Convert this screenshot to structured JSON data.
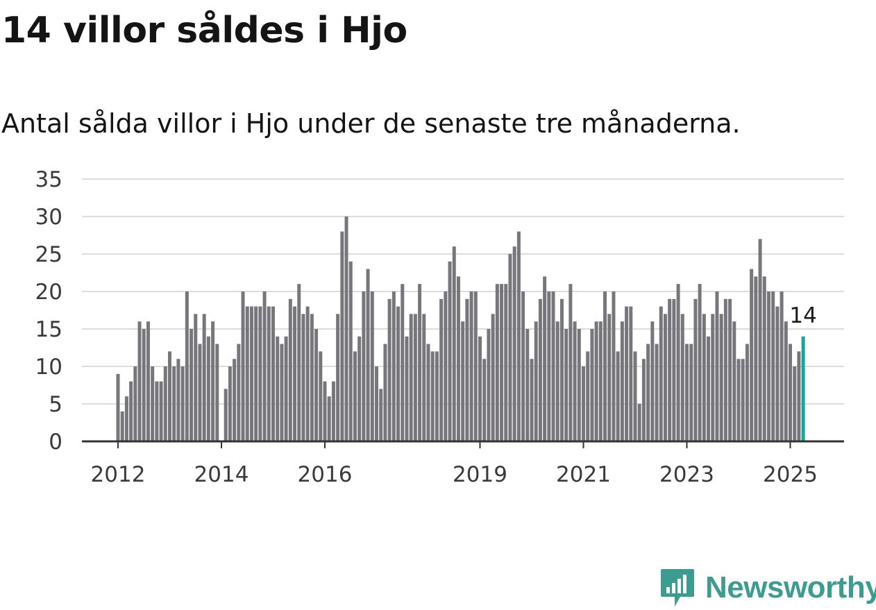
{
  "header": {
    "title": "14 villor såldes i Hjo",
    "subtitle": "Antal sålda villor i Hjo under de senaste tre månaderna."
  },
  "brand": {
    "name": "Newsworthy"
  },
  "colors": {
    "bar": "#76767b",
    "highlight": "#17a59a",
    "grid": "#dcdcdc",
    "axis": "#333333",
    "brand": "#3d9c90"
  },
  "chart_data": {
    "type": "bar",
    "title": "14 villor såldes i Hjo",
    "subtitle": "Antal sålda villor i Hjo under de senaste tre månaderna.",
    "xlabel": "",
    "ylabel": "",
    "ylim": [
      0,
      35
    ],
    "yticks": [
      0,
      5,
      10,
      15,
      20,
      25,
      30,
      35
    ],
    "xticks": [
      "2012",
      "2014",
      "2016",
      "2019",
      "2021",
      "2023",
      "2025"
    ],
    "grid": true,
    "legend": "none",
    "start": "2012-01",
    "frequency": "monthly",
    "values": [
      9,
      4,
      6,
      8,
      10,
      16,
      15,
      16,
      10,
      8,
      8,
      10,
      12,
      10,
      11,
      10,
      20,
      15,
      17,
      13,
      17,
      14,
      16,
      13,
      null,
      7,
      10,
      11,
      13,
      20,
      18,
      18,
      18,
      18,
      20,
      18,
      18,
      14,
      13,
      14,
      19,
      18,
      21,
      17,
      18,
      17,
      15,
      12,
      8,
      6,
      8,
      17,
      28,
      30,
      24,
      12,
      14,
      20,
      23,
      20,
      10,
      7,
      13,
      19,
      20,
      18,
      21,
      14,
      17,
      17,
      21,
      17,
      13,
      12,
      12,
      19,
      20,
      24,
      26,
      22,
      16,
      19,
      20,
      20,
      14,
      11,
      15,
      17,
      21,
      21,
      21,
      25,
      26,
      28,
      20,
      15,
      11,
      16,
      19,
      22,
      20,
      20,
      16,
      19,
      15,
      21,
      16,
      15,
      10,
      12,
      15,
      16,
      16,
      20,
      17,
      20,
      12,
      16,
      18,
      18,
      12,
      5,
      11,
      13,
      16,
      13,
      18,
      17,
      19,
      19,
      21,
      17,
      13,
      13,
      19,
      21,
      17,
      14,
      17,
      20,
      17,
      19,
      19,
      16,
      11,
      11,
      13,
      23,
      22,
      27,
      22,
      20,
      20,
      18,
      20,
      16,
      13,
      10,
      12,
      14
    ],
    "highlight_label": "14"
  }
}
